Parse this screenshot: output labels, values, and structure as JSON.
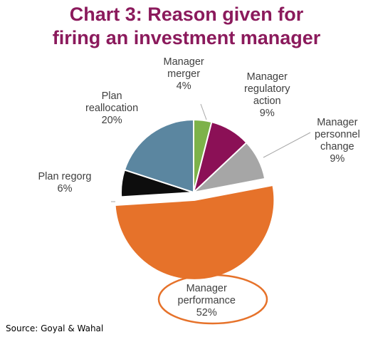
{
  "chart_data": {
    "type": "pie",
    "title_lines": [
      "Chart 3: Reason given for",
      "firing an investment manager"
    ],
    "slices": [
      {
        "label_lines": [
          "Manager",
          "merger"
        ],
        "value_label": "4%",
        "value": 4,
        "color": "#7db24a"
      },
      {
        "label_lines": [
          "Manager",
          "regulatory",
          "action"
        ],
        "value_label": "9%",
        "value": 9,
        "color": "#8b1056"
      },
      {
        "label_lines": [
          "Manager",
          "personnel",
          "change"
        ],
        "value_label": "9%",
        "value": 9,
        "color": "#a6a6a6"
      },
      {
        "label_lines": [
          "Manager",
          "performance"
        ],
        "value_label": "52%",
        "value": 52,
        "color": "#e6722a"
      },
      {
        "label_lines": [
          "Plan regorg"
        ],
        "value_label": "6%",
        "value": 6,
        "color": "#0d0d0d"
      },
      {
        "label_lines": [
          "Plan",
          "reallocation"
        ],
        "value_label": "20%",
        "value": 20,
        "color": "#5b86a0"
      }
    ],
    "highlight_color": "#e6722a",
    "source": "Source: Goyal & Wahal"
  }
}
